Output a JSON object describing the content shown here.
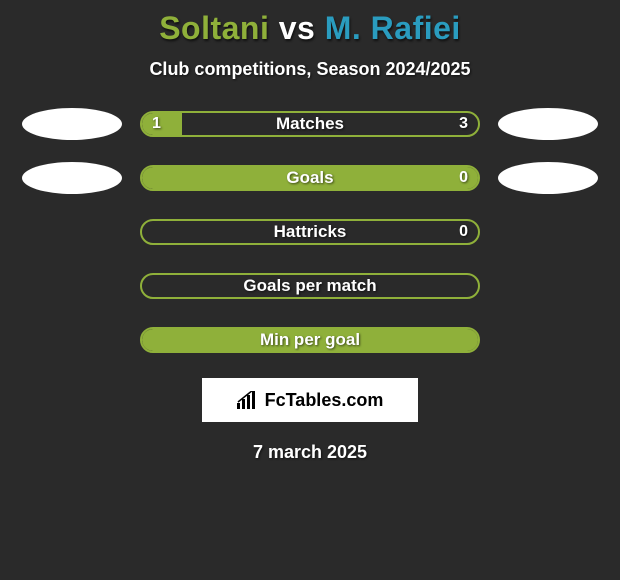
{
  "background_color": "#2a2a2a",
  "title": {
    "player1": {
      "name": "Soltani",
      "color": "#8fb03a"
    },
    "vs": {
      "text": "vs",
      "color": "#ffffff"
    },
    "player2": {
      "name": "M. Rafiei",
      "color": "#2a9cbf"
    }
  },
  "subtitle": "Club competitions, Season 2024/2025",
  "player_colors": {
    "left": "#8fb03a",
    "right": "#2a9cbf"
  },
  "side_ellipse_color": "#ffffff",
  "stats": [
    {
      "label": "Matches",
      "left_value": "1",
      "right_value": "3",
      "left_fill_pct": 12,
      "right_fill_pct": 0,
      "show_side_ellipses": true,
      "show_left_value": true,
      "show_right_value": true,
      "fill_color": "#8fb03a",
      "border_color": "#8fb03a"
    },
    {
      "label": "Goals",
      "left_value": "",
      "right_value": "0",
      "left_fill_pct": 100,
      "right_fill_pct": 0,
      "show_side_ellipses": true,
      "show_left_value": false,
      "show_right_value": true,
      "fill_color": "#8fb03a",
      "border_color": "#8fb03a"
    },
    {
      "label": "Hattricks",
      "left_value": "",
      "right_value": "0",
      "left_fill_pct": 0,
      "right_fill_pct": 0,
      "show_side_ellipses": false,
      "show_left_value": false,
      "show_right_value": true,
      "fill_color": "#8fb03a",
      "border_color": "#8fb03a"
    },
    {
      "label": "Goals per match",
      "left_value": "",
      "right_value": "",
      "left_fill_pct": 0,
      "right_fill_pct": 0,
      "show_side_ellipses": false,
      "show_left_value": false,
      "show_right_value": false,
      "fill_color": "#8fb03a",
      "border_color": "#8fb03a"
    },
    {
      "label": "Min per goal",
      "left_value": "",
      "right_value": "",
      "left_fill_pct": 100,
      "right_fill_pct": 0,
      "show_side_ellipses": false,
      "show_left_value": false,
      "show_right_value": false,
      "fill_color": "#8fb03a",
      "border_color": "#8fb03a"
    }
  ],
  "brand": "FcTables.com",
  "date": "7 march 2025",
  "typography": {
    "title_fontsize": 32,
    "subtitle_fontsize": 18,
    "bar_label_fontsize": 17,
    "value_fontsize": 16,
    "date_fontsize": 18
  }
}
